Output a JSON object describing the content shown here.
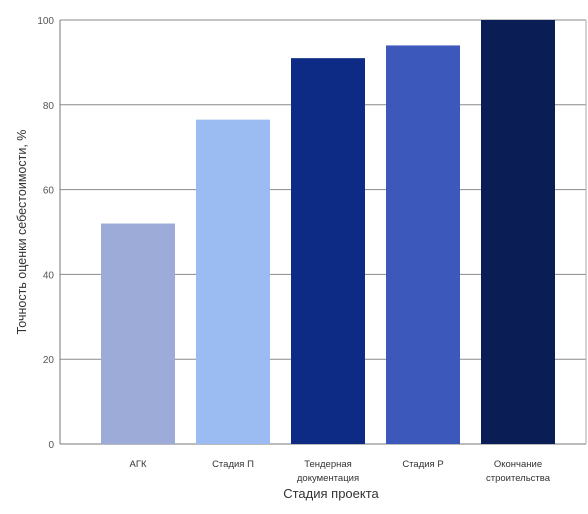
{
  "chart_data": {
    "type": "bar",
    "categories": [
      "АГК",
      "Стадия П",
      "Тендерная\nдокументация",
      "Стадия Р",
      "Окончание\nстроительства"
    ],
    "values": [
      52,
      76.5,
      91,
      94,
      100
    ],
    "colors": [
      "#9dabd8",
      "#9bbcf3",
      "#0d2a84",
      "#3c58bb",
      "#0b1d55"
    ],
    "title": "",
    "xlabel": "Стадия проекта",
    "ylabel": "Точность оценки себестоимости, %",
    "ylim": [
      0,
      100
    ],
    "yticks": [
      0,
      20,
      40,
      60,
      80,
      100
    ],
    "grid": true,
    "legend": "none"
  }
}
